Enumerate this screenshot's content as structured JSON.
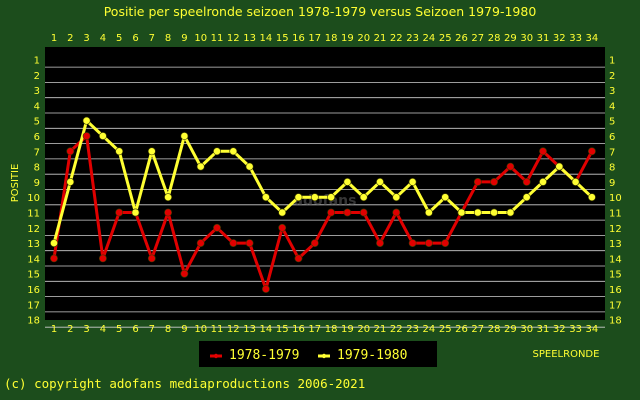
{
  "chart_data": {
    "type": "line",
    "title": "Positie per speelronde seizoen 1978-1979 versus Seizoen 1979-1980",
    "xlabel": "SPEELRONDE",
    "ylabel": "POSITIE",
    "x": [
      1,
      2,
      3,
      4,
      5,
      6,
      7,
      8,
      9,
      10,
      11,
      12,
      13,
      14,
      15,
      16,
      17,
      18,
      19,
      20,
      21,
      22,
      23,
      24,
      25,
      26,
      27,
      28,
      29,
      30,
      31,
      32,
      33,
      34
    ],
    "ylim": [
      1,
      18
    ],
    "y_inverted": true,
    "yticks": [
      1,
      2,
      3,
      4,
      5,
      6,
      7,
      8,
      9,
      10,
      11,
      12,
      13,
      14,
      15,
      16,
      17,
      18
    ],
    "grid": true,
    "legend_position": "bottom-center",
    "series": [
      {
        "name": "1978-1979",
        "color": "#e00000",
        "values": [
          14,
          7,
          6,
          14,
          11,
          11,
          14,
          11,
          15,
          13,
          12,
          13,
          13,
          16,
          12,
          14,
          13,
          11,
          11,
          11,
          13,
          11,
          13,
          13,
          13,
          11,
          9,
          9,
          8,
          9,
          7,
          8,
          9,
          7
        ]
      },
      {
        "name": "1979-1980",
        "color": "#ffff33",
        "values": [
          13,
          9,
          5,
          6,
          7,
          11,
          7,
          10,
          6,
          8,
          7,
          7,
          8,
          10,
          11,
          10,
          10,
          10,
          9,
          10,
          9,
          10,
          9,
          11,
          10,
          11,
          11,
          11,
          11,
          10,
          9,
          8,
          9,
          10
        ]
      }
    ]
  },
  "watermark": "adofans",
  "copyright": "(c) copyright adofans mediaproductions 2006-2021",
  "colors": {
    "background": "#1c4d1c",
    "plot_background": "#000000",
    "grid": "#cfcfcf",
    "text": "#ffff33"
  }
}
